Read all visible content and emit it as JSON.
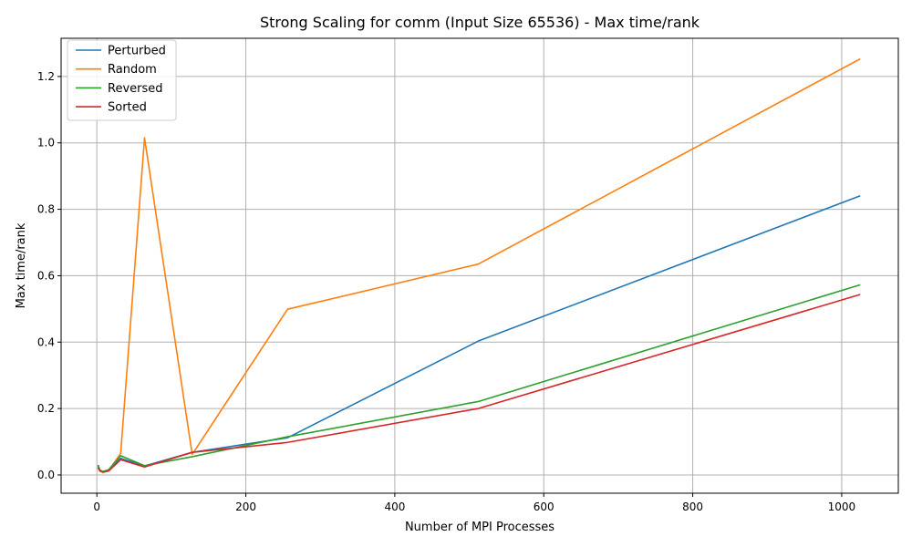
{
  "chart_data": {
    "type": "line",
    "title": "Strong Scaling for comm (Input Size 65536) - Max time/rank",
    "xlabel": "Number of MPI Processes",
    "ylabel": "Max time/rank",
    "xlim": [
      -48,
      1076
    ],
    "ylim": [
      -0.055,
      1.315
    ],
    "xticks": [
      0,
      200,
      400,
      600,
      800,
      1000
    ],
    "xtick_labels": [
      "0",
      "200",
      "400",
      "600",
      "800",
      "1000"
    ],
    "yticks": [
      0.0,
      0.2,
      0.4,
      0.6,
      0.8,
      1.0,
      1.2
    ],
    "ytick_labels": [
      "0.0",
      "0.2",
      "0.4",
      "0.6",
      "0.8",
      "1.0",
      "1.2"
    ],
    "grid": true,
    "legend_position": "upper-left",
    "x": [
      2,
      4,
      8,
      16,
      32,
      64,
      128,
      256,
      512,
      1024
    ],
    "series": [
      {
        "name": "Perturbed",
        "color": "#1f77b4",
        "values": [
          0.028,
          0.015,
          0.01,
          0.015,
          0.05,
          0.027,
          0.068,
          0.112,
          0.403,
          0.84
        ]
      },
      {
        "name": "Random",
        "color": "#ff7f0e",
        "values": [
          0.025,
          0.015,
          0.01,
          0.014,
          0.065,
          1.015,
          0.062,
          0.499,
          0.635,
          1.252
        ]
      },
      {
        "name": "Reversed",
        "color": "#2ca02c",
        "values": [
          0.025,
          0.014,
          0.01,
          0.016,
          0.058,
          0.028,
          0.055,
          0.115,
          0.221,
          0.572
        ]
      },
      {
        "name": "Sorted",
        "color": "#d62728",
        "values": [
          0.02,
          0.012,
          0.008,
          0.012,
          0.046,
          0.024,
          0.068,
          0.098,
          0.2,
          0.543
        ]
      }
    ]
  }
}
